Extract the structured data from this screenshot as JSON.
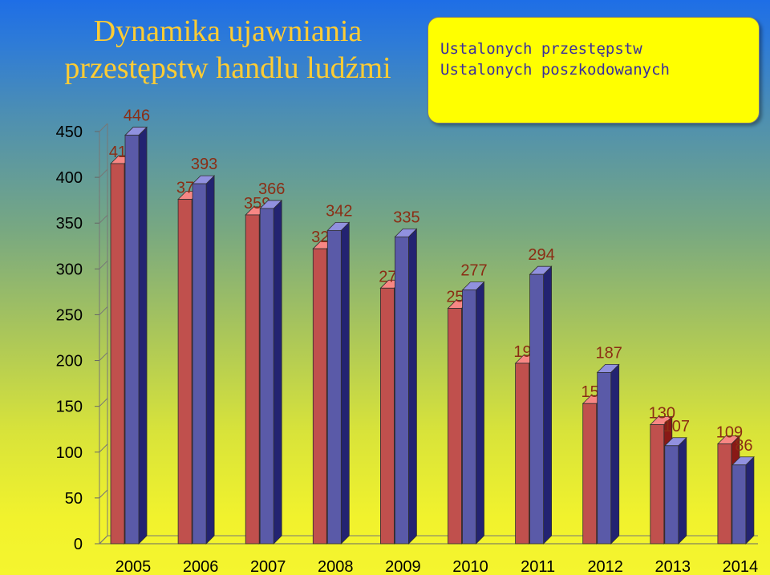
{
  "slide": {
    "background_colors": [
      "#1e6ee6",
      "#f5f52e"
    ]
  },
  "chart_data": {
    "type": "bar",
    "title": "Dynamika ujawniania przestępstw handlu ludźmi",
    "categories": [
      "2005",
      "2006",
      "2007",
      "2008",
      "2009",
      "2010",
      "2011",
      "2012",
      "2013",
      "2014"
    ],
    "series": [
      {
        "name": "Ustalonych przestępstw",
        "color": "#c0504d",
        "values": [
          415,
          376,
          359,
          322,
          279,
          257,
          197,
          153,
          130,
          109
        ]
      },
      {
        "name": "Ustalonych poszkodowanych",
        "color": "#5a5aa8",
        "values": [
          446,
          393,
          366,
          342,
          335,
          277,
          294,
          187,
          107,
          86
        ]
      }
    ],
    "ylim": [
      0,
      450
    ],
    "yticks": [
      0,
      50,
      100,
      150,
      200,
      250,
      300,
      350,
      400,
      450
    ],
    "xlabel": "",
    "ylabel": "",
    "legend_position": "top-right",
    "grid": false,
    "bar_style": "3d",
    "label_color": "#8b2d14",
    "tick_label_color": "#000000"
  }
}
